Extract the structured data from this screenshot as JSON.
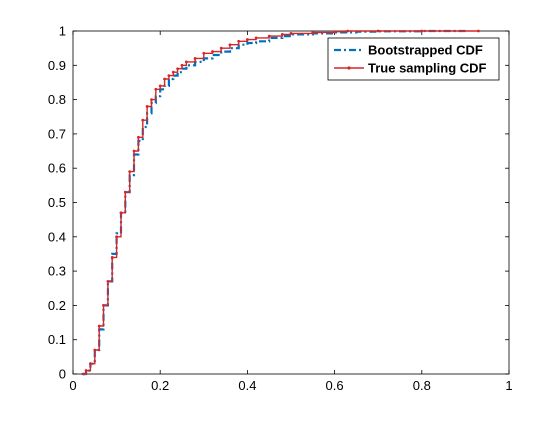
{
  "chart_data": {
    "type": "line",
    "xlabel": "",
    "ylabel": "",
    "xlim": [
      0,
      1
    ],
    "ylim": [
      0,
      1
    ],
    "x_ticks": [
      "0",
      "0.2",
      "0.4",
      "0.6",
      "0.8",
      "1"
    ],
    "y_ticks": [
      "0",
      "0.1",
      "0.2",
      "0.3",
      "0.4",
      "0.5",
      "0.6",
      "0.7",
      "0.8",
      "0.9",
      "1"
    ],
    "grid": false,
    "legend": "top-right",
    "series": [
      {
        "name": "Bootstrapped CDF",
        "color": "#0072BD",
        "style": "dash-dot",
        "x": [
          0.02,
          0.03,
          0.04,
          0.05,
          0.06,
          0.07,
          0.08,
          0.09,
          0.1,
          0.11,
          0.12,
          0.13,
          0.14,
          0.15,
          0.16,
          0.17,
          0.18,
          0.19,
          0.2,
          0.21,
          0.22,
          0.23,
          0.24,
          0.25,
          0.26,
          0.28,
          0.3,
          0.32,
          0.34,
          0.36,
          0.38,
          0.4,
          0.42,
          0.45,
          0.48,
          0.5,
          0.55,
          0.6,
          0.65,
          0.7,
          0.8,
          0.9
        ],
        "y": [
          0.0,
          0.01,
          0.03,
          0.07,
          0.13,
          0.2,
          0.27,
          0.35,
          0.41,
          0.47,
          0.53,
          0.58,
          0.64,
          0.68,
          0.72,
          0.76,
          0.79,
          0.81,
          0.83,
          0.84,
          0.86,
          0.87,
          0.88,
          0.89,
          0.9,
          0.91,
          0.92,
          0.93,
          0.94,
          0.95,
          0.96,
          0.965,
          0.97,
          0.98,
          0.985,
          0.99,
          0.993,
          0.996,
          0.998,
          0.999,
          1.0,
          1.0
        ]
      },
      {
        "name": "True sampling CDF",
        "color": "#D62728",
        "style": "solid-dot",
        "x": [
          0.025,
          0.03,
          0.04,
          0.05,
          0.06,
          0.07,
          0.08,
          0.09,
          0.1,
          0.11,
          0.12,
          0.13,
          0.14,
          0.15,
          0.16,
          0.17,
          0.18,
          0.19,
          0.2,
          0.21,
          0.22,
          0.23,
          0.24,
          0.25,
          0.26,
          0.28,
          0.3,
          0.32,
          0.34,
          0.36,
          0.38,
          0.4,
          0.42,
          0.45,
          0.48,
          0.5,
          0.55,
          0.6,
          0.63,
          0.7,
          0.8,
          0.93
        ],
        "y": [
          0.0,
          0.01,
          0.03,
          0.07,
          0.14,
          0.2,
          0.27,
          0.34,
          0.4,
          0.47,
          0.53,
          0.59,
          0.65,
          0.69,
          0.74,
          0.78,
          0.8,
          0.83,
          0.84,
          0.86,
          0.87,
          0.88,
          0.89,
          0.9,
          0.91,
          0.92,
          0.935,
          0.94,
          0.95,
          0.96,
          0.97,
          0.975,
          0.98,
          0.985,
          0.99,
          0.993,
          0.996,
          0.998,
          1.0,
          1.0,
          1.0,
          1.0
        ]
      }
    ]
  }
}
